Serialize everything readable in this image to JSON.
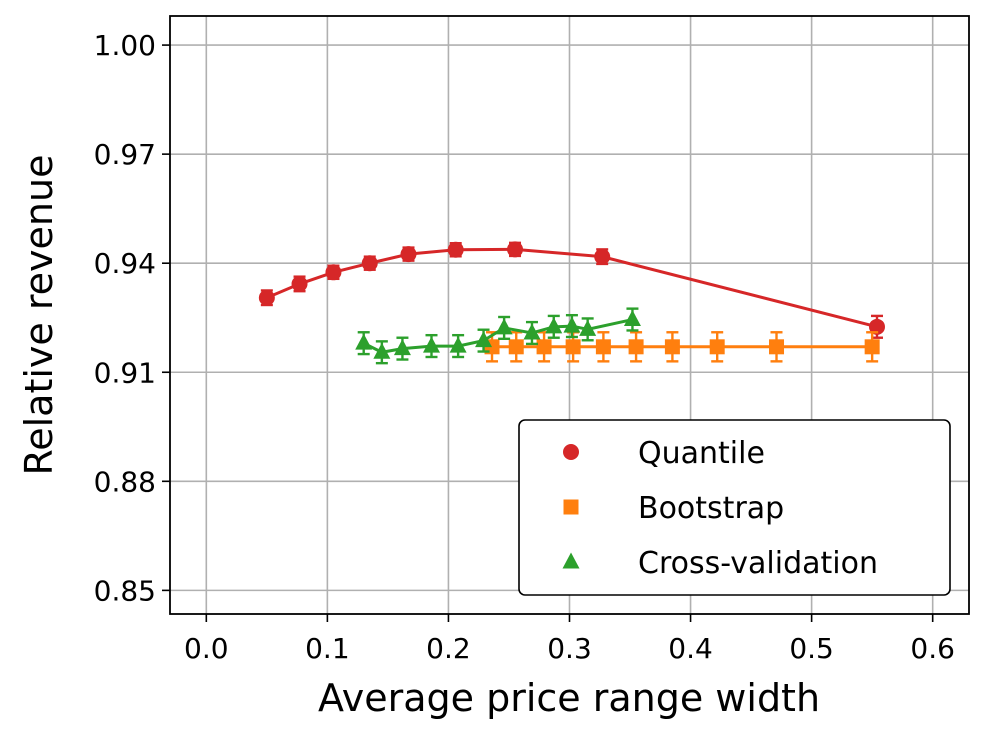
{
  "chart_data": {
    "type": "line",
    "title": "",
    "xlabel": "Average price range width",
    "ylabel": "Relative revenue",
    "xlim": [
      -0.03,
      0.63
    ],
    "ylim": [
      0.8435,
      1.008
    ],
    "xticks": [
      0.0,
      0.1,
      0.2,
      0.3,
      0.4,
      0.5,
      0.6
    ],
    "xtick_labels": [
      "0.0",
      "0.1",
      "0.2",
      "0.3",
      "0.4",
      "0.5",
      "0.6"
    ],
    "yticks": [
      0.85,
      0.88,
      0.91,
      0.94,
      0.97,
      1.0
    ],
    "ytick_labels": [
      "0.85",
      "0.88",
      "0.91",
      "0.94",
      "0.97",
      "1.00"
    ],
    "grid": true,
    "legend_position": "bottom-right",
    "series": [
      {
        "name": "Quantile",
        "color": "#d62728",
        "marker": "circle",
        "x": [
          0.05,
          0.077,
          0.105,
          0.135,
          0.167,
          0.206,
          0.255,
          0.327,
          0.554
        ],
        "y": [
          0.9305,
          0.9343,
          0.9375,
          0.94,
          0.9425,
          0.9437,
          0.9438,
          0.9418,
          0.9225
        ],
        "err": [
          0.002,
          0.002,
          0.0018,
          0.0018,
          0.0018,
          0.0018,
          0.0018,
          0.002,
          0.003
        ]
      },
      {
        "name": "Bootstrap",
        "color": "#ff7f0e",
        "marker": "square",
        "x": [
          0.236,
          0.256,
          0.279,
          0.303,
          0.328,
          0.355,
          0.385,
          0.422,
          0.471,
          0.55
        ],
        "y": [
          0.917,
          0.917,
          0.917,
          0.917,
          0.917,
          0.917,
          0.917,
          0.917,
          0.917,
          0.917
        ],
        "err": [
          0.004,
          0.004,
          0.004,
          0.004,
          0.004,
          0.004,
          0.004,
          0.004,
          0.004,
          0.004
        ]
      },
      {
        "name": "Cross-validation",
        "color": "#2ca02c",
        "marker": "triangle",
        "x": [
          0.13,
          0.145,
          0.162,
          0.186,
          0.208,
          0.229,
          0.246,
          0.269,
          0.287,
          0.302,
          0.315,
          0.352
        ],
        "y": [
          0.918,
          0.9155,
          0.9165,
          0.9172,
          0.9172,
          0.9187,
          0.9222,
          0.9208,
          0.9225,
          0.9227,
          0.9218,
          0.9245
        ],
        "err": [
          0.003,
          0.003,
          0.003,
          0.003,
          0.003,
          0.003,
          0.003,
          0.003,
          0.003,
          0.003,
          0.003,
          0.003
        ]
      }
    ]
  }
}
